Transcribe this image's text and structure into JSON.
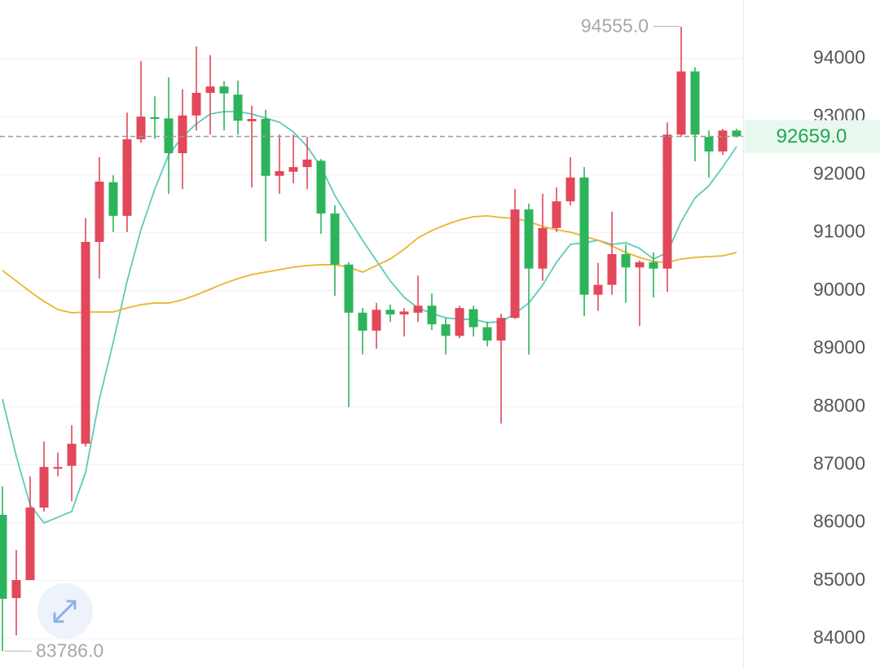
{
  "chart_data": {
    "type": "candlestick",
    "categories": [
      null,
      null,
      null,
      null,
      null,
      null,
      null,
      null,
      null,
      null,
      null,
      null,
      null,
      null,
      null,
      null,
      null,
      null,
      null,
      null,
      null,
      null,
      null,
      null,
      null,
      null,
      null,
      null,
      null,
      null,
      null,
      null,
      null,
      null,
      null,
      null,
      null,
      null,
      null,
      null,
      null,
      null,
      null,
      null,
      null,
      null,
      null,
      null,
      null,
      null,
      null,
      null,
      null,
      null
    ],
    "open": [
      86135,
      84700,
      85010,
      86260,
      86930,
      86980,
      87360,
      90840,
      91870,
      91290,
      92610,
      92990,
      92970,
      92370,
      93020,
      93410,
      93520,
      93380,
      92920,
      92960,
      91980,
      92050,
      92130,
      92240,
      91330,
      90450,
      89620,
      89310,
      89670,
      89590,
      89620,
      89740,
      89420,
      89220,
      89680,
      89370,
      89140,
      89530,
      91400,
      90380,
      91080,
      91540,
      91950,
      89930,
      90100,
      90630,
      90400,
      90490,
      90380,
      92690,
      93780,
      92650,
      92400,
      92760
    ],
    "high": [
      86626,
      85530,
      86800,
      87400,
      87210,
      87680,
      91250,
      92300,
      91990,
      93070,
      93960,
      93350,
      93680,
      93470,
      94210,
      94060,
      93610,
      93620,
      93190,
      93120,
      92690,
      92690,
      92650,
      92270,
      91470,
      90490,
      89700,
      89790,
      89760,
      89700,
      90260,
      89950,
      89530,
      89740,
      89740,
      89460,
      89600,
      91750,
      91500,
      91670,
      91780,
      92300,
      92130,
      90480,
      91360,
      90800,
      90520,
      90660,
      92900,
      94555,
      93850,
      92760,
      92790,
      92790
    ],
    "low": [
      83786,
      84055,
      85010,
      86190,
      86800,
      86370,
      87310,
      90210,
      91010,
      91010,
      92550,
      92620,
      91670,
      91750,
      92760,
      92690,
      92760,
      92690,
      91780,
      90850,
      91670,
      91850,
      91750,
      90980,
      89910,
      87990,
      88900,
      89000,
      89460,
      89210,
      89460,
      89320,
      88900,
      89180,
      89210,
      89040,
      87710,
      89510,
      88900,
      90170,
      91010,
      91470,
      89560,
      89650,
      89930,
      89790,
      89390,
      89880,
      89980,
      92650,
      92230,
      91950,
      92340,
      92640
    ],
    "close": [
      84688,
      85010,
      86260,
      86960,
      86960,
      87360,
      90840,
      91880,
      91290,
      92610,
      93000,
      92960,
      92370,
      93020,
      93410,
      93520,
      93400,
      92930,
      92960,
      91980,
      92060,
      92130,
      92260,
      91330,
      90450,
      89620,
      89310,
      89670,
      89590,
      89640,
      89740,
      89420,
      89220,
      89700,
      89370,
      89140,
      89530,
      91400,
      90380,
      91080,
      91540,
      91950,
      89930,
      90100,
      90630,
      90400,
      90490,
      90380,
      92690,
      93780,
      92690,
      92400,
      92760,
      92659
    ],
    "up_color": "#e2475a",
    "down_color": "#2cb45c",
    "lines": [
      {
        "color": "#5ccbb8",
        "values": [
          88129,
          87146,
          86303,
          85994,
          86093,
          86191,
          86865,
          88129,
          89112,
          90166,
          91051,
          91753,
          92343,
          92652,
          92876,
          93045,
          93087,
          93087,
          93045,
          92975,
          92904,
          92736,
          92483,
          92132,
          91640,
          91247,
          90868,
          90517,
          90166,
          89885,
          89702,
          89604,
          89534,
          89506,
          89506,
          89450,
          89464,
          89604,
          89787,
          90096,
          90489,
          90798,
          90826,
          90868,
          90798,
          90826,
          90728,
          90545,
          90657,
          91191,
          91598,
          91809,
          92132,
          92483
        ]
      },
      {
        "color": "#eab52a",
        "values": [
          90348,
          90166,
          89983,
          89815,
          89674,
          89618,
          89632,
          89632,
          89632,
          89702,
          89758,
          89787,
          89787,
          89843,
          89927,
          90025,
          90124,
          90208,
          90278,
          90320,
          90362,
          90404,
          90433,
          90447,
          90447,
          90404,
          90320,
          90433,
          90545,
          90714,
          90910,
          91037,
          91135,
          91219,
          91275,
          91289,
          91261,
          91247,
          91191,
          91107,
          91051,
          91008,
          90938,
          90868,
          90770,
          90657,
          90573,
          90503,
          90489,
          90545,
          90573,
          90587,
          90601,
          90657
        ]
      }
    ],
    "ylim": [
      83494,
      95011
    ],
    "yticks": [
      84000,
      85000,
      86000,
      87000,
      88000,
      89000,
      90000,
      91000,
      92000,
      93000,
      94000
    ],
    "grid": true,
    "high_label": {
      "value": 94555,
      "label": "94555.0"
    },
    "low_label": {
      "value": 83786,
      "label": "83786.0"
    },
    "last_price": {
      "value": 92659,
      "label": "92659.0"
    }
  }
}
